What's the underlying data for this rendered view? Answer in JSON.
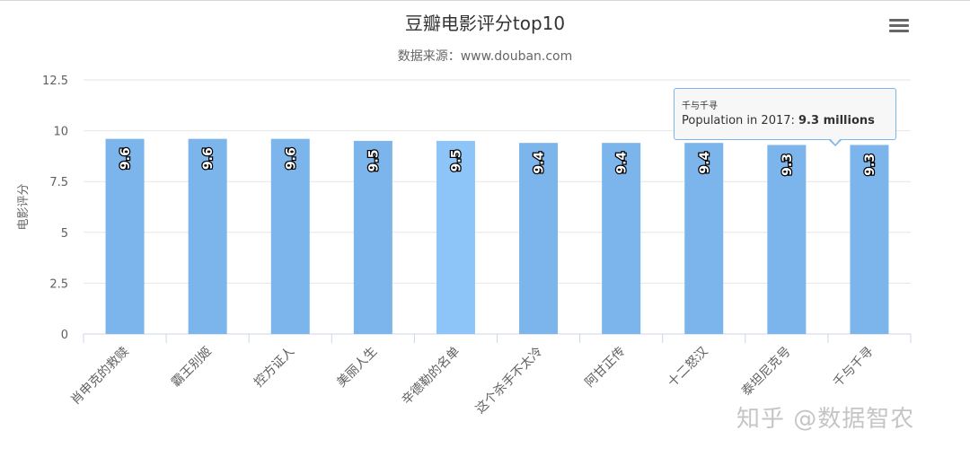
{
  "chart_data": {
    "type": "bar",
    "title": "豆瓣电影评分top10",
    "subtitle": "数据来源：www.douban.com",
    "ylabel": "电影评分",
    "xlabel": "",
    "categories": [
      "肖申克的救赎",
      "霸王别姬",
      "控方证人",
      "美丽人生",
      "辛德勒的名单",
      "这个杀手不太冷",
      "阿甘正传",
      "十二怒汉",
      "泰坦尼克号",
      "千与千寻"
    ],
    "values": [
      9.6,
      9.6,
      9.6,
      9.5,
      9.5,
      9.4,
      9.4,
      9.4,
      9.3,
      9.3
    ],
    "value_labels": [
      "9.6",
      "9.6",
      "9.6",
      "9.5",
      "9.5",
      "9.4",
      "9.4",
      "9.4",
      "9.3",
      "9.3"
    ],
    "ylim": [
      0,
      12.5
    ],
    "yticks": [
      "0",
      "2.5",
      "5",
      "7.5",
      "10",
      "12.5"
    ],
    "grid": true,
    "legend": "none",
    "highlighted_index": 4,
    "colors": {
      "bar": "#7cb5ec",
      "bar_hover": "#8ec5f8",
      "grid": "#e6e6e6",
      "axis": "#ccd6eb"
    }
  },
  "tooltip": {
    "header": "千与千寻",
    "label": "Population in 2017: ",
    "value": "9.3 millions"
  },
  "menu": {
    "icon": "menu-icon"
  },
  "watermark": "知乎 @数据智农"
}
